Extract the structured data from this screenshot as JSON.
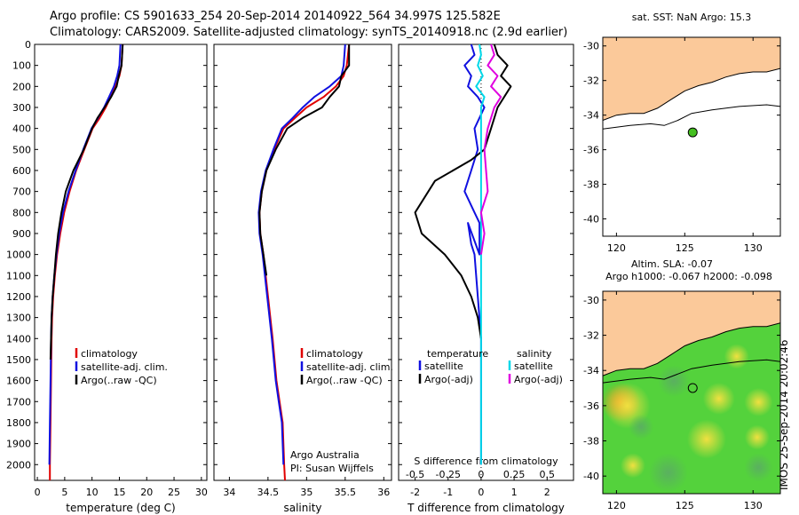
{
  "header": {
    "line1": "Argo profile: CS 5901633_254 20-Sep-2014 20140922_564 34.997S 125.582E",
    "line2": "Climatology: CARS2009. Satellite-adjusted climatology: synTS_20140918.nc (2.9d earlier)"
  },
  "timestamp": "IMOS 25-Sep-2014 20:02:46",
  "colors": {
    "climatology": "#e00000",
    "satellite": "#1010e0",
    "argo": "#000000",
    "sal_satellite": "#00d8e8",
    "sal_argo": "#e000e0",
    "land": "#fbc99a",
    "float_marker": "#44c020"
  },
  "chart_data": [
    {
      "id": "temperature",
      "type": "line",
      "xlabel": "temperature (deg C)",
      "ylabel": "",
      "xlim": [
        -0.5,
        31
      ],
      "ylim": [
        2075,
        0
      ],
      "xticks": [
        "0",
        "5",
        "10",
        "15",
        "20",
        "25",
        "30"
      ],
      "yticks": [
        "0",
        "100",
        "200",
        "300",
        "400",
        "500",
        "600",
        "700",
        "800",
        "900",
        "1000",
        "1100",
        "1200",
        "1300",
        "1400",
        "1500",
        "1600",
        "1700",
        "1800",
        "1900",
        "2000"
      ],
      "legend": [
        "climatology",
        "satellite-adj. clim.",
        "Argo(..raw -QC)"
      ],
      "series": [
        {
          "name": "climatology",
          "color_key": "climatology",
          "x": [
            15.6,
            15.4,
            15.0,
            14.3,
            13.4,
            12.5,
            11.4,
            10.1,
            8.6,
            7.1,
            5.9,
            4.9,
            4.2,
            3.6,
            3.2,
            2.9,
            2.7,
            2.6,
            2.5,
            2.4,
            2.3,
            2.3
          ],
          "y": [
            0,
            100,
            150,
            200,
            250,
            300,
            350,
            400,
            500,
            600,
            700,
            800,
            900,
            1000,
            1100,
            1200,
            1300,
            1400,
            1600,
            1800,
            2000,
            2075
          ]
        },
        {
          "name": "satellite-adj. clim.",
          "color_key": "satellite",
          "x": [
            15.2,
            15.0,
            14.6,
            14.0,
            13.1,
            12.2,
            11.1,
            9.9,
            8.4,
            7.0,
            5.7,
            4.7,
            4.0,
            3.5,
            3.1,
            2.8,
            2.6,
            2.5,
            2.4,
            2.3,
            2.2
          ],
          "y": [
            0,
            100,
            150,
            200,
            250,
            300,
            350,
            400,
            500,
            600,
            700,
            800,
            900,
            1000,
            1100,
            1200,
            1300,
            1400,
            1600,
            1800,
            2000
          ]
        },
        {
          "name": "Argo(..raw -QC)",
          "color_key": "argo",
          "x": [
            15.6,
            15.4,
            14.9,
            14.5,
            13.5,
            12.3,
            11.0,
            10.0,
            8.5,
            6.6,
            5.2,
            4.4,
            3.8,
            3.4,
            3.1,
            2.8,
            2.6,
            2.5,
            2.4
          ],
          "y": [
            0,
            100,
            150,
            200,
            250,
            300,
            350,
            400,
            500,
            600,
            700,
            800,
            900,
            1000,
            1100,
            1200,
            1300,
            1400,
            1500
          ]
        }
      ]
    },
    {
      "id": "salinity",
      "type": "line",
      "xlabel": "salinity",
      "ylabel": "",
      "xlim": [
        33.8,
        36.1
      ],
      "ylim": [
        2075,
        0
      ],
      "xticks": [
        "34",
        "34.5",
        "35",
        "35.5",
        "36"
      ],
      "legend": [
        "climatology",
        "satellite-adj. clim.",
        "Argo(..raw -QC)"
      ],
      "annotations": [
        "Argo Australia",
        "PI: Susan Wijffels"
      ],
      "series": [
        {
          "name": "climatology",
          "color_key": "climatology",
          "x": [
            35.55,
            35.52,
            35.48,
            35.38,
            35.22,
            35.0,
            34.85,
            34.7,
            34.58,
            34.48,
            34.42,
            34.39,
            34.4,
            34.44,
            34.5,
            34.56,
            34.61,
            34.65,
            34.69,
            34.71,
            34.72
          ],
          "y": [
            0,
            100,
            150,
            200,
            250,
            300,
            350,
            400,
            500,
            600,
            700,
            800,
            900,
            1000,
            1200,
            1400,
            1600,
            1700,
            1800,
            2000,
            2075
          ]
        },
        {
          "name": "satellite-adj. clim.",
          "color_key": "satellite",
          "x": [
            35.5,
            35.48,
            35.45,
            35.3,
            35.1,
            34.95,
            34.82,
            34.68,
            34.57,
            34.47,
            34.41,
            34.38,
            34.39,
            34.43,
            34.49,
            34.55,
            34.6,
            34.64,
            34.68,
            34.7
          ],
          "y": [
            0,
            100,
            150,
            200,
            250,
            300,
            350,
            400,
            500,
            600,
            700,
            800,
            900,
            1000,
            1200,
            1400,
            1600,
            1700,
            1800,
            2000
          ]
        },
        {
          "name": "Argo(..raw -QC)",
          "color_key": "argo",
          "x": [
            35.55,
            35.55,
            35.45,
            35.42,
            35.3,
            35.2,
            34.95,
            34.75,
            34.6,
            34.48,
            34.42,
            34.39,
            34.4,
            34.44,
            34.48
          ],
          "y": [
            0,
            100,
            150,
            200,
            250,
            300,
            350,
            400,
            500,
            600,
            700,
            800,
            900,
            1000,
            1100
          ]
        }
      ]
    },
    {
      "id": "difference",
      "type": "line",
      "xlabel": "T difference from climatology",
      "xlabel_top": "S difference from climatology",
      "ylabel": "",
      "xlim": [
        -2.5,
        2.8
      ],
      "ylim": [
        2075,
        0
      ],
      "xticks": [
        "-2",
        "-1",
        "0",
        "1",
        "2"
      ],
      "xticks_top": [
        "-0.5",
        "-0.25",
        "0",
        "0.25",
        "0.5"
      ],
      "legend_titles": [
        "temperature",
        "salinity"
      ],
      "legend": [
        "satellite",
        "Argo(-adj)",
        "satellite",
        "Argo(-adj)"
      ],
      "series": [
        {
          "name": "temperature satellite",
          "color_key": "satellite",
          "x": [
            -0.3,
            -0.2,
            -0.5,
            -0.3,
            -0.4,
            -0.1,
            0.1,
            -0.2,
            -0.1,
            -0.3,
            -0.5,
            -0.2,
            -0.05,
            -0.05,
            -0.4,
            -0.3,
            -0.2,
            -0.1,
            0.0,
            0.0,
            0.0
          ],
          "y": [
            0,
            50,
            100,
            150,
            200,
            250,
            300,
            400,
            500,
            600,
            700,
            800,
            850,
            1000,
            850,
            950,
            1000,
            1200,
            1400,
            1600,
            2000
          ]
        },
        {
          "name": "temperature Argo(-adj)",
          "color_key": "argo",
          "x": [
            0.4,
            0.5,
            0.8,
            0.6,
            0.9,
            0.5,
            0.3,
            0.1,
            -0.3,
            -1.4,
            -2.0,
            -1.8,
            -1.1,
            -0.6,
            -0.3,
            -0.1,
            0.0
          ],
          "y": [
            0,
            50,
            100,
            150,
            200,
            300,
            400,
            500,
            550,
            650,
            800,
            900,
            1000,
            1100,
            1200,
            1300,
            1400
          ]
        },
        {
          "name": "salinity satellite",
          "color_key": "sal_satellite",
          "x": [
            -0.05,
            0.0,
            -0.1,
            0.05,
            -0.15,
            0.1,
            0.0,
            0.0,
            0.0,
            0.0,
            0.0
          ],
          "y": [
            0,
            50,
            100,
            150,
            200,
            250,
            300,
            400,
            600,
            1000,
            2000
          ]
        },
        {
          "name": "salinity Argo(-adj)",
          "color_key": "sal_argo",
          "x": [
            0.3,
            0.4,
            0.2,
            0.5,
            0.3,
            0.6,
            0.4,
            0.2,
            0.1,
            0.2,
            0.0,
            0.1,
            0.0
          ],
          "y": [
            0,
            50,
            100,
            150,
            200,
            250,
            300,
            400,
            500,
            700,
            800,
            900,
            1000
          ]
        }
      ]
    },
    {
      "id": "map_sst",
      "type": "scatter",
      "title": "sat. SST: NaN Argo: 15.3",
      "xlim": [
        119,
        132
      ],
      "ylim": [
        -41,
        -29.5
      ],
      "xticks": [
        "120",
        "125",
        "130"
      ],
      "yticks": [
        "-30",
        "-32",
        "-34",
        "-36",
        "-38",
        "-40"
      ],
      "points": [
        {
          "x": 125.582,
          "y": -34.997
        }
      ]
    },
    {
      "id": "map_sla",
      "type": "heatmap",
      "title": "Altim. SLA: -0.07",
      "subtitle": "Argo h1000: -0.067 h2000: -0.098",
      "xlim": [
        119,
        132
      ],
      "ylim": [
        -41,
        -29.5
      ],
      "xticks": [
        "120",
        "125",
        "130"
      ],
      "yticks": [
        "-30",
        "-32",
        "-34",
        "-36",
        "-38",
        "-40"
      ],
      "points": [
        {
          "x": 125.582,
          "y": -34.997
        }
      ]
    }
  ]
}
